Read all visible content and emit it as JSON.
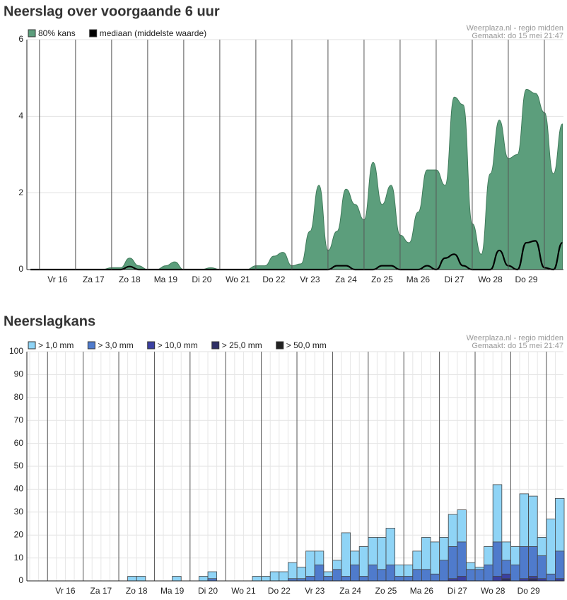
{
  "chart_data": [
    {
      "type": "area",
      "title": "Neerslag over voorgaande 6 uur",
      "notes": [
        "Weerplaza.nl - regio midden",
        "Gemaakt: do 15 mei 21:47"
      ],
      "x": [
        -0.25,
        0,
        0.25,
        0.5,
        0.75,
        1,
        1.25,
        1.5,
        1.75,
        2,
        2.25,
        2.5,
        2.75,
        3,
        3.25,
        3.5,
        3.75,
        4,
        4.25,
        4.5,
        4.75,
        5,
        5.25,
        5.5,
        5.75,
        6,
        6.25,
        6.5,
        6.75,
        7,
        7.25,
        7.5,
        7.75,
        8,
        8.25,
        8.5,
        8.75,
        9,
        9.25,
        9.5,
        9.75,
        10,
        10.25,
        10.5,
        10.75,
        11,
        11.25,
        11.5,
        11.75,
        12,
        12.25,
        12.5,
        12.75,
        13,
        13.25,
        13.5,
        13.75,
        14,
        14.25,
        14.5
      ],
      "series": [
        {
          "name": "80% kans",
          "color": "#5c9e7c",
          "mark": "area",
          "values": [
            0,
            0,
            0,
            0,
            0,
            0,
            0,
            0,
            0,
            0.05,
            0.05,
            0.3,
            0.1,
            0,
            0,
            0.1,
            0.2,
            0,
            0,
            0,
            0.05,
            0,
            0,
            0,
            0,
            0.1,
            0.1,
            0.35,
            0.45,
            0.1,
            0.15,
            1.0,
            2.2,
            0.5,
            1.0,
            2.1,
            1.7,
            1.3,
            2.8,
            1.7,
            2.2,
            0.9,
            0.7,
            1.5,
            2.6,
            2.6,
            2.2,
            4.5,
            4.3,
            1.2,
            0.4,
            2.5,
            3.9,
            2.9,
            3.0,
            4.7,
            4.6,
            4.1,
            2.5,
            3.8
          ]
        },
        {
          "name": "mediaan (middelste waarde)",
          "color": "#000000",
          "mark": "line",
          "values": [
            0,
            0,
            0,
            0,
            0,
            0,
            0,
            0,
            0,
            0,
            0,
            0.08,
            0,
            0,
            0,
            0,
            0,
            0,
            0,
            0,
            0,
            0,
            0,
            0,
            0,
            0,
            0,
            0,
            0,
            0,
            0,
            0,
            0,
            0,
            0.1,
            0.1,
            0,
            0,
            0,
            0.1,
            0.1,
            0,
            0,
            0,
            0.1,
            0,
            0.3,
            0.4,
            0.1,
            0,
            0,
            0,
            0.5,
            0.1,
            0,
            0.7,
            0.75,
            0.05,
            0,
            0.7
          ]
        }
      ],
      "xlim": [
        -0.35,
        14.53
      ],
      "ylim": [
        0,
        6
      ],
      "yticks": [
        0,
        2,
        4,
        6
      ],
      "xticks": [
        {
          "value": 0.5,
          "label": "Vr 16"
        },
        {
          "value": 1.5,
          "label": "Za 17"
        },
        {
          "value": 2.5,
          "label": "Zo 18"
        },
        {
          "value": 3.5,
          "label": "Ma 19"
        },
        {
          "value": 4.5,
          "label": "Di 20"
        },
        {
          "value": 5.5,
          "label": "Wo 21"
        },
        {
          "value": 6.5,
          "label": "Do 22"
        },
        {
          "value": 7.5,
          "label": "Vr 23"
        },
        {
          "value": 8.5,
          "label": "Za 24"
        },
        {
          "value": 9.5,
          "label": "Zo 25"
        },
        {
          "value": 10.5,
          "label": "Ma 26"
        },
        {
          "value": 11.5,
          "label": "Di 27"
        },
        {
          "value": 12.5,
          "label": "Wo 28"
        },
        {
          "value": 13.5,
          "label": "Do 29"
        }
      ],
      "day_separators": [
        0,
        1,
        2,
        3,
        4,
        5,
        6,
        7,
        8,
        9,
        10,
        11,
        12,
        13,
        14
      ],
      "grid": true
    },
    {
      "type": "bar",
      "title": "Neerslagkans",
      "notes": [
        "Weerplaza.nl - regio midden",
        "Gemaakt: do 15 mei 21:47"
      ],
      "x": [
        -0.5,
        -0.25,
        0,
        0.25,
        0.5,
        0.75,
        1,
        1.25,
        1.5,
        1.75,
        2,
        2.25,
        2.5,
        2.75,
        3,
        3.25,
        3.5,
        3.75,
        4,
        4.25,
        4.5,
        4.75,
        5,
        5.25,
        5.5,
        5.75,
        6,
        6.25,
        6.5,
        6.75,
        7,
        7.25,
        7.5,
        7.75,
        8,
        8.25,
        8.5,
        8.75,
        9,
        9.25,
        9.5,
        9.75,
        10,
        10.25,
        10.5,
        10.75,
        11,
        11.25,
        11.5,
        11.75,
        12,
        12.25,
        12.5,
        12.75,
        13,
        13.25,
        13.5,
        13.75,
        14,
        14.25
      ],
      "series": [
        {
          "name": "> 1,0 mm",
          "color": "#8fd4f6",
          "values": [
            0,
            0,
            0,
            0,
            0,
            0,
            0,
            0,
            0,
            0,
            0,
            2,
            2,
            0,
            0,
            0,
            2,
            0,
            0,
            2,
            4,
            0,
            0,
            0,
            0,
            2,
            2,
            4,
            4,
            8,
            6,
            13,
            13,
            4,
            9,
            21,
            13,
            15,
            19,
            19,
            23,
            7,
            7,
            13,
            19,
            17,
            19,
            29,
            31,
            8,
            6,
            15,
            42,
            17,
            15,
            38,
            37,
            19,
            27,
            36
          ]
        },
        {
          "name": "> 3,0 mm",
          "color": "#4f7bcc",
          "values": [
            0,
            0,
            0,
            0,
            0,
            0,
            0,
            0,
            0,
            0,
            0,
            0,
            0,
            0,
            0,
            0,
            0,
            0,
            0,
            0,
            1,
            0,
            0,
            0,
            0,
            0,
            0,
            0,
            0,
            1,
            1,
            2,
            7,
            2,
            5,
            2,
            7,
            2,
            7,
            5,
            7,
            2,
            2,
            5,
            5,
            3,
            9,
            15,
            17,
            5,
            5,
            7,
            17,
            9,
            7,
            15,
            15,
            11,
            3,
            13
          ]
        },
        {
          "name": "> 10,0 mm",
          "color": "#3b40a2",
          "values": [
            0,
            0,
            0,
            0,
            0,
            0,
            0,
            0,
            0,
            0,
            0,
            0,
            0,
            0,
            0,
            0,
            0,
            0,
            0,
            0,
            0,
            0,
            0,
            0,
            0,
            0,
            0,
            0,
            0,
            0,
            0,
            0,
            0,
            0,
            0,
            0,
            0,
            0,
            0,
            0,
            0,
            0,
            0,
            0,
            0,
            0,
            0,
            1,
            2,
            0,
            0,
            0,
            2,
            3,
            0,
            1,
            2,
            1,
            0,
            1
          ]
        },
        {
          "name": "> 25,0 mm",
          "color": "#2e2f66",
          "values": [
            0,
            0,
            0,
            0,
            0,
            0,
            0,
            0,
            0,
            0,
            0,
            0,
            0,
            0,
            0,
            0,
            0,
            0,
            0,
            0,
            0,
            0,
            0,
            0,
            0,
            0,
            0,
            0,
            0,
            0,
            0,
            0,
            0,
            0,
            0,
            0,
            0,
            0,
            0,
            0,
            0,
            0,
            0,
            0,
            0,
            0,
            0,
            0,
            0,
            0,
            0,
            0,
            0,
            1,
            0,
            0,
            1,
            0,
            0,
            0
          ]
        },
        {
          "name": "> 50,0 mm",
          "color": "#222222",
          "values": [
            0,
            0,
            0,
            0,
            0,
            0,
            0,
            0,
            0,
            0,
            0,
            0,
            0,
            0,
            0,
            0,
            0,
            0,
            0,
            0,
            0,
            0,
            0,
            0,
            0,
            0,
            0,
            0,
            0,
            0,
            0,
            0,
            0,
            0,
            0,
            0,
            0,
            0,
            0,
            0,
            0,
            0,
            0,
            0,
            0,
            0,
            0,
            0,
            0,
            0,
            0,
            0,
            0,
            0,
            0,
            0,
            0,
            0,
            0,
            0
          ]
        }
      ],
      "xlim": [
        -0.58,
        14.48
      ],
      "ylim": [
        0,
        100
      ],
      "yticks": [
        0,
        10,
        20,
        30,
        40,
        50,
        60,
        70,
        80,
        90,
        100
      ],
      "xticks": [
        {
          "value": 0.5,
          "label": "Vr 16"
        },
        {
          "value": 1.5,
          "label": "Za 17"
        },
        {
          "value": 2.5,
          "label": "Zo 18"
        },
        {
          "value": 3.5,
          "label": "Ma 19"
        },
        {
          "value": 4.5,
          "label": "Di 20"
        },
        {
          "value": 5.5,
          "label": "Wo 21"
        },
        {
          "value": 6.5,
          "label": "Do 22"
        },
        {
          "value": 7.5,
          "label": "Vr 23"
        },
        {
          "value": 8.5,
          "label": "Za 24"
        },
        {
          "value": 9.5,
          "label": "Zo 25"
        },
        {
          "value": 10.5,
          "label": "Ma 26"
        },
        {
          "value": 11.5,
          "label": "Di 27"
        },
        {
          "value": 12.5,
          "label": "Wo 28"
        },
        {
          "value": 13.5,
          "label": "Do 29"
        }
      ],
      "day_separators": [
        0,
        1,
        2,
        3,
        4,
        5,
        6,
        7,
        8,
        9,
        10,
        11,
        12,
        13,
        14
      ],
      "grid": true
    }
  ]
}
